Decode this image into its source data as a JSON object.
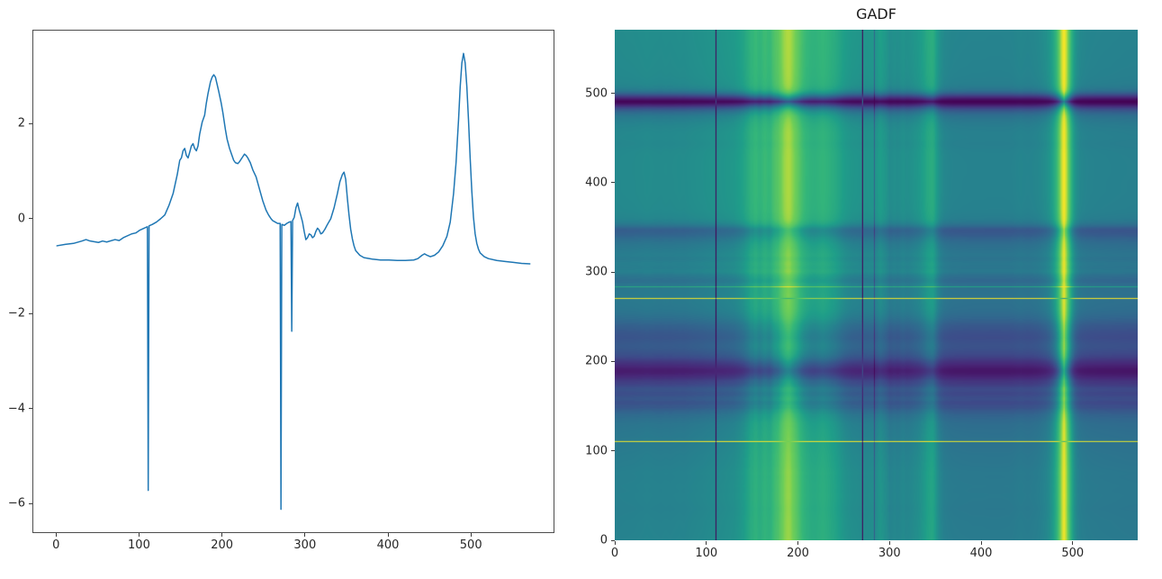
{
  "figure": {
    "background": "#ffffff"
  },
  "chart_data": [
    {
      "type": "line",
      "title": "",
      "xlabel": "",
      "ylabel": "",
      "legend": null,
      "grid": false,
      "line_color": "#1f77b4",
      "xlim": [
        -28.5,
        598.5
      ],
      "ylim": [
        -6.58,
        3.98
      ],
      "xticks": [
        0,
        100,
        200,
        300,
        400,
        500
      ],
      "yticks": [
        -6,
        -4,
        -2,
        0,
        2
      ],
      "x": [
        0,
        10,
        20,
        30,
        35,
        40,
        50,
        55,
        60,
        70,
        75,
        80,
        90,
        95,
        100,
        105,
        109,
        110,
        111,
        115,
        120,
        125,
        130,
        135,
        140,
        145,
        148,
        150,
        152,
        154,
        156,
        158,
        160,
        162,
        164,
        166,
        168,
        170,
        172,
        175,
        178,
        180,
        182,
        185,
        187,
        189,
        191,
        193,
        195,
        198,
        200,
        203,
        205,
        208,
        210,
        213,
        215,
        218,
        220,
        223,
        226,
        228,
        230,
        233,
        236,
        240,
        244,
        248,
        252,
        255,
        258,
        260,
        263,
        266,
        269,
        270,
        271,
        274,
        277,
        280,
        282,
        283,
        284,
        286,
        288,
        290,
        292,
        294,
        296,
        298,
        300,
        302,
        304,
        306,
        308,
        310,
        312,
        314,
        316,
        318,
        320,
        323,
        326,
        330,
        334,
        338,
        341,
        344,
        346,
        348,
        350,
        352,
        354,
        356,
        358,
        360,
        365,
        370,
        380,
        390,
        400,
        410,
        420,
        430,
        435,
        440,
        443,
        446,
        450,
        455,
        460,
        465,
        470,
        474,
        478,
        481,
        484,
        486,
        488,
        490,
        492,
        494,
        496,
        498,
        500,
        502,
        504,
        506,
        508,
        510,
        515,
        520,
        530,
        540,
        550,
        560,
        570
      ],
      "y": [
        -0.55,
        -0.52,
        -0.5,
        -0.45,
        -0.42,
        -0.45,
        -0.48,
        -0.45,
        -0.47,
        -0.42,
        -0.44,
        -0.38,
        -0.3,
        -0.28,
        -0.22,
        -0.18,
        -0.15,
        -5.7,
        -0.13,
        -0.1,
        -0.05,
        0.02,
        0.1,
        0.3,
        0.55,
        0.95,
        1.25,
        1.3,
        1.45,
        1.5,
        1.35,
        1.3,
        1.42,
        1.55,
        1.6,
        1.5,
        1.45,
        1.55,
        1.8,
        2.05,
        2.2,
        2.45,
        2.65,
        2.9,
        3.0,
        3.05,
        3.0,
        2.85,
        2.7,
        2.45,
        2.25,
        1.9,
        1.7,
        1.5,
        1.4,
        1.25,
        1.2,
        1.18,
        1.22,
        1.3,
        1.38,
        1.35,
        1.3,
        1.2,
        1.05,
        0.9,
        0.65,
        0.4,
        0.2,
        0.1,
        0.02,
        -0.02,
        -0.05,
        -0.08,
        -0.08,
        -6.1,
        -0.1,
        -0.12,
        -0.08,
        -0.05,
        -0.04,
        -2.35,
        -0.02,
        0.05,
        0.25,
        0.35,
        0.2,
        0.08,
        -0.05,
        -0.25,
        -0.42,
        -0.38,
        -0.3,
        -0.32,
        -0.38,
        -0.35,
        -0.25,
        -0.18,
        -0.22,
        -0.3,
        -0.28,
        -0.2,
        -0.1,
        0.02,
        0.25,
        0.55,
        0.8,
        0.95,
        1.0,
        0.85,
        0.45,
        0.1,
        -0.2,
        -0.4,
        -0.55,
        -0.65,
        -0.75,
        -0.8,
        -0.83,
        -0.85,
        -0.85,
        -0.86,
        -0.86,
        -0.85,
        -0.82,
        -0.75,
        -0.72,
        -0.75,
        -0.78,
        -0.75,
        -0.68,
        -0.55,
        -0.35,
        -0.05,
        0.55,
        1.2,
        2.1,
        2.8,
        3.3,
        3.5,
        3.3,
        2.8,
        2.1,
        1.3,
        0.6,
        0.05,
        -0.3,
        -0.5,
        -0.62,
        -0.7,
        -0.78,
        -0.82,
        -0.86,
        -0.88,
        -0.9,
        -0.92,
        -0.93
      ]
    },
    {
      "type": "heatmap",
      "title": "GADF",
      "colormap": "viridis",
      "derived_from": "Gramian Angular Difference Field of the line series in chart 0",
      "size": [
        571,
        571
      ],
      "value_range": [
        -1,
        1
      ],
      "extent": [
        0,
        571,
        0,
        571
      ],
      "xticks": [
        0,
        100,
        200,
        300,
        400,
        500
      ],
      "yticks": [
        0,
        100,
        200,
        300,
        400,
        500
      ]
    }
  ]
}
